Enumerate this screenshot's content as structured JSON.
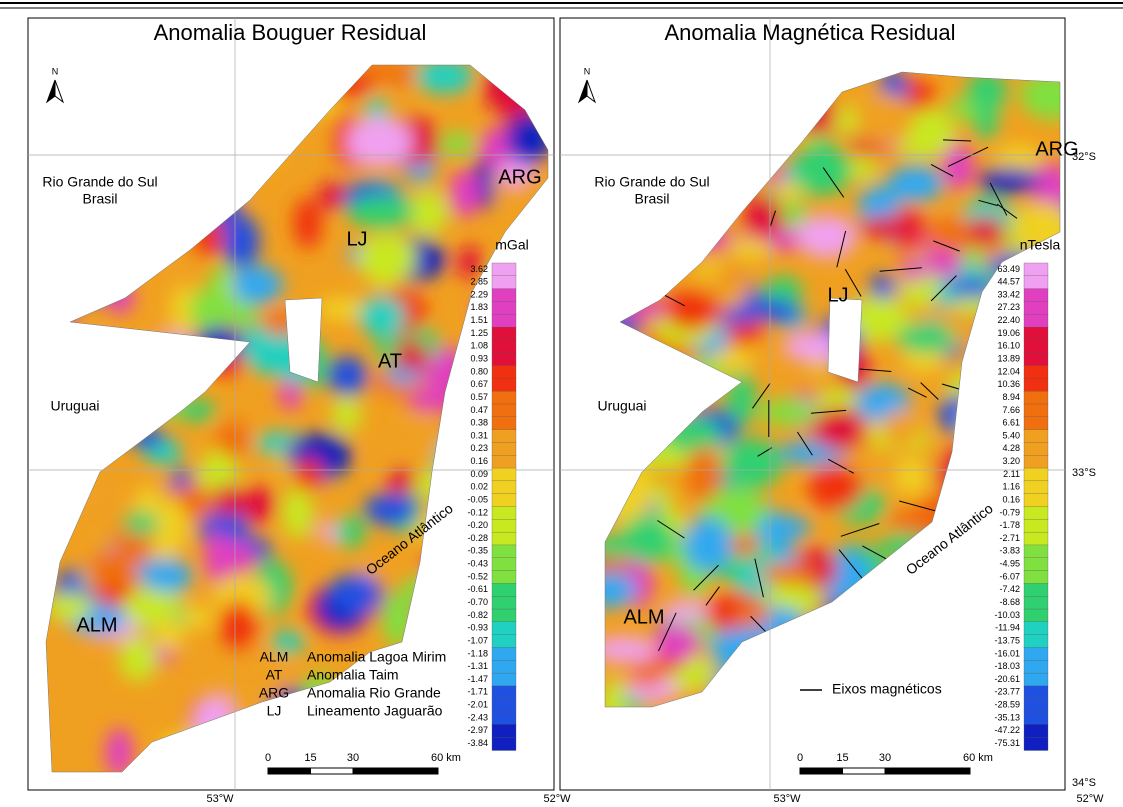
{
  "north": "N",
  "lat_labels": [
    "32°S",
    "33°S",
    "34°S"
  ],
  "panels": [
    {
      "title": "Anomalia Bouguer Residual",
      "unit": "mGal",
      "colorbar": [
        "3.62",
        "2.85",
        "2.29",
        "1.83",
        "1.51",
        "1.25",
        "1.08",
        "0.93",
        "0.80",
        "0.67",
        "0.57",
        "0.47",
        "0.38",
        "0.31",
        "0.23",
        "0.16",
        "0.09",
        "0.02",
        "-0.05",
        "-0.12",
        "-0.20",
        "-0.28",
        "-0.35",
        "-0.43",
        "-0.52",
        "-0.61",
        "-0.70",
        "-0.82",
        "-0.93",
        "-1.07",
        "-1.18",
        "-1.31",
        "-1.47",
        "-1.71",
        "-2.01",
        "-2.43",
        "-2.97",
        "-3.84"
      ],
      "regions": [
        "Rio Grande do Sul",
        "Brasil",
        "Uruguai",
        "Oceano Atlântico"
      ],
      "anomalies": [
        "LJ",
        "AT",
        "ARG",
        "ALM"
      ],
      "legend": [
        [
          "ALM",
          "Anomalia Lagoa Mirim"
        ],
        [
          "AT",
          "Anomalia Taim"
        ],
        [
          "ARG",
          "Anomalia Rio Grande"
        ],
        [
          "LJ",
          "Lineamento Jaguarão"
        ]
      ],
      "scale": [
        "0",
        "15",
        "30",
        "60 km"
      ],
      "lon_labels": [
        "53°W",
        "52°W"
      ]
    },
    {
      "title": "Anomalia Magnética Residual",
      "unit": "nTesla",
      "colorbar": [
        "63.49",
        "44.57",
        "33.42",
        "27.23",
        "22.40",
        "19.06",
        "16.10",
        "13.89",
        "12.04",
        "10.36",
        "8.94",
        "7.66",
        "6.61",
        "5.40",
        "4.28",
        "3.20",
        "2.11",
        "1.16",
        "0.16",
        "-0.79",
        "-1.78",
        "-2.71",
        "-3.83",
        "-4.95",
        "-6.07",
        "-7.42",
        "-8.68",
        "-10.03",
        "-11.94",
        "-13.75",
        "-16.01",
        "-18.03",
        "-20.61",
        "-23.77",
        "-28.59",
        "-35.13",
        "-47.22",
        "-75.31"
      ],
      "regions": [
        "Rio Grande do Sul",
        "Brasil",
        "Uruguai",
        "Oceano Atlântico"
      ],
      "anomalies": [
        "ARG",
        "LJ",
        "ALM"
      ],
      "legend": "Eixos magnéticos",
      "scale": [
        "0",
        "15",
        "30",
        "60 km"
      ],
      "lon_labels": [
        "53°W",
        "52°W"
      ]
    }
  ]
}
